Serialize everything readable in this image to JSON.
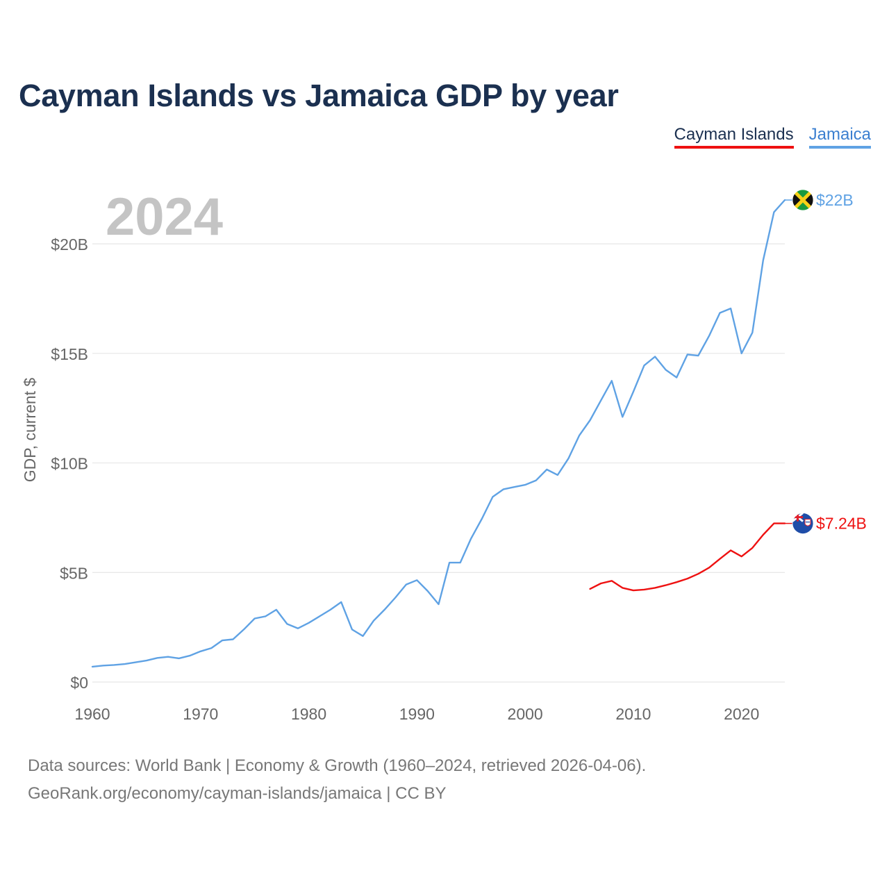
{
  "title": "Cayman Islands vs Jamaica GDP by year",
  "legend": {
    "cayman": "Cayman Islands",
    "jamaica": "Jamaica"
  },
  "colors": {
    "cayman": "#ee1111",
    "jamaica": "#5fa2e4",
    "grid": "#e6e6e6",
    "axis_text": "#666666",
    "year_label": "#c4c4c4",
    "title": "#1b3050"
  },
  "footer": {
    "line1": "Data sources: World Bank | Economy & Growth (1960–2024, retrieved 2026-04-06).",
    "line2": "GeoRank.org/economy/cayman-islands/jamaica | CC BY"
  },
  "chart_data": {
    "type": "line",
    "title": "Cayman Islands vs Jamaica GDP by year",
    "year_label": "2024",
    "ylabel": "GDP, current $",
    "xlabel": "",
    "xlim": [
      1960,
      2024
    ],
    "ylim": [
      0,
      22000000000
    ],
    "x_ticks": [
      1960,
      1970,
      1980,
      1990,
      2000,
      2010,
      2020
    ],
    "x_tick_labels": [
      "1960",
      "1970",
      "1980",
      "1990",
      "2000",
      "2010",
      "2020"
    ],
    "y_ticks": [
      0,
      5000000000,
      10000000000,
      15000000000,
      20000000000
    ],
    "y_tick_labels": [
      "$0",
      "$5B",
      "$10B",
      "$15B",
      "$20B"
    ],
    "series": [
      {
        "name": "Jamaica",
        "color": "#5fa2e4",
        "end_label": "$22B",
        "flag": "jamaica-flag",
        "x": [
          1960,
          1961,
          1962,
          1963,
          1964,
          1965,
          1966,
          1967,
          1968,
          1969,
          1970,
          1971,
          1972,
          1973,
          1974,
          1975,
          1976,
          1977,
          1978,
          1979,
          1980,
          1981,
          1982,
          1983,
          1984,
          1985,
          1986,
          1987,
          1988,
          1989,
          1990,
          1991,
          1992,
          1993,
          1994,
          1995,
          1996,
          1997,
          1998,
          1999,
          2000,
          2001,
          2002,
          2003,
          2004,
          2005,
          2006,
          2007,
          2008,
          2009,
          2010,
          2011,
          2012,
          2013,
          2014,
          2015,
          2016,
          2017,
          2018,
          2019,
          2020,
          2021,
          2022,
          2023,
          2024
        ],
        "values": [
          700000000,
          750000000,
          780000000,
          820000000,
          900000000,
          980000000,
          1100000000,
          1150000000,
          1080000000,
          1200000000,
          1400000000,
          1550000000,
          1900000000,
          1950000000,
          2400000000,
          2900000000,
          3000000000,
          3300000000,
          2650000000,
          2450000000,
          2700000000,
          3000000000,
          3300000000,
          3650000000,
          2400000000,
          2100000000,
          2800000000,
          3300000000,
          3850000000,
          4450000000,
          4650000000,
          4150000000,
          3550000000,
          5450000000,
          5450000000,
          6550000000,
          7450000000,
          8450000000,
          8800000000,
          8900000000,
          9000000000,
          9200000000,
          9700000000,
          9450000000,
          10200000000,
          11250000000,
          11950000000,
          12850000000,
          13750000000,
          12100000000,
          13250000000,
          14450000000,
          14850000000,
          14250000000,
          13900000000,
          14950000000,
          14900000000,
          15800000000,
          16850000000,
          17050000000,
          15000000000,
          15950000000,
          19250000000,
          21450000000,
          22000000000
        ]
      },
      {
        "name": "Cayman Islands",
        "color": "#ee1111",
        "end_label": "$7.24B",
        "flag": "cayman-islands-flag",
        "x": [
          2006,
          2007,
          2008,
          2009,
          2010,
          2011,
          2012,
          2013,
          2014,
          2015,
          2016,
          2017,
          2018,
          2019,
          2020,
          2021,
          2022,
          2023,
          2024
        ],
        "values": [
          4250000000,
          4500000000,
          4620000000,
          4300000000,
          4180000000,
          4220000000,
          4300000000,
          4420000000,
          4560000000,
          4720000000,
          4940000000,
          5220000000,
          5620000000,
          6010000000,
          5730000000,
          6120000000,
          6720000000,
          7240000000,
          7240000000
        ]
      }
    ],
    "legend_position": "top-right",
    "grid": true
  }
}
